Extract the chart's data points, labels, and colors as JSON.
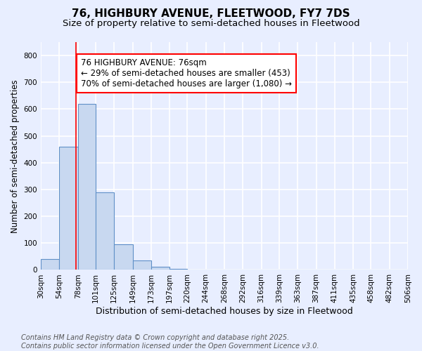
{
  "title1": "76, HIGHBURY AVENUE, FLEETWOOD, FY7 7DS",
  "title2": "Size of property relative to semi-detached houses in Fleetwood",
  "xlabel": "Distribution of semi-detached houses by size in Fleetwood",
  "ylabel": "Number of semi-detached properties",
  "bin_edges": [
    30,
    54,
    78,
    101,
    125,
    149,
    173,
    197,
    220,
    244,
    268,
    292,
    316,
    339,
    363,
    387,
    411,
    435,
    458,
    482,
    506
  ],
  "bin_heights": [
    40,
    460,
    620,
    290,
    95,
    35,
    12,
    3,
    0,
    0,
    0,
    0,
    0,
    0,
    0,
    0,
    0,
    0,
    0,
    0
  ],
  "bar_color": "#c8d8f0",
  "bar_edge_color": "#6090c8",
  "red_line_x": 76,
  "annotation_text": "76 HIGHBURY AVENUE: 76sqm\n← 29% of semi-detached houses are smaller (453)\n70% of semi-detached houses are larger (1,080) →",
  "annotation_box_color": "white",
  "annotation_edge_color": "red",
  "ylim": [
    0,
    850
  ],
  "yticks": [
    0,
    100,
    200,
    300,
    400,
    500,
    600,
    700,
    800
  ],
  "footer_text": "Contains HM Land Registry data © Crown copyright and database right 2025.\nContains public sector information licensed under the Open Government Licence v3.0.",
  "background_color": "#e8eeff",
  "grid_color": "white",
  "title1_fontsize": 11,
  "title2_fontsize": 9.5,
  "xlabel_fontsize": 9,
  "ylabel_fontsize": 8.5,
  "tick_fontsize": 7.5,
  "annotation_fontsize": 8.5,
  "footer_fontsize": 7
}
